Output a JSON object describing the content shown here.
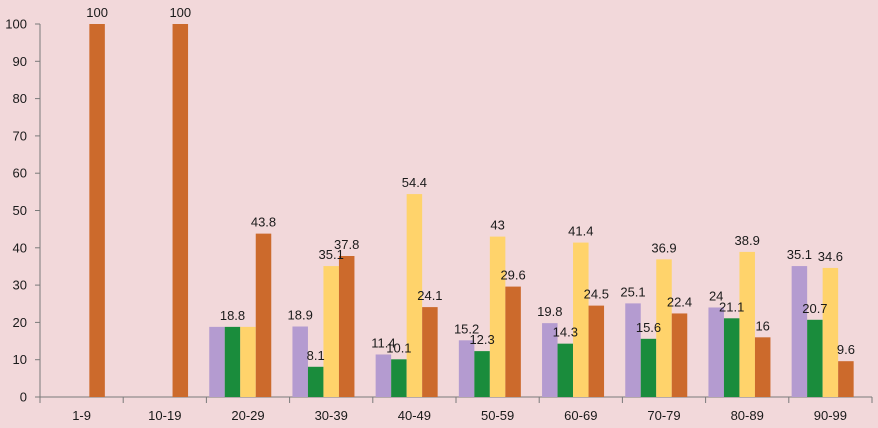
{
  "chart_data": {
    "type": "bar",
    "categories": [
      "1-9",
      "10-19",
      "20-29",
      "30-39",
      "40-49",
      "50-59",
      "60-69",
      "70-79",
      "80-89",
      "90-99"
    ],
    "series": [
      {
        "color": "#b49bd0",
        "values": [
          null,
          null,
          18.8,
          18.9,
          11.4,
          15.2,
          19.8,
          25.1,
          24,
          35.1
        ],
        "labels": [
          "",
          "",
          "",
          "18.9",
          "11.4",
          "15.2",
          "19.8",
          "25.1",
          "24",
          "35.1"
        ]
      },
      {
        "color": "#1a8c3c",
        "values": [
          null,
          null,
          18.8,
          8.1,
          10.1,
          12.3,
          14.3,
          15.6,
          21.1,
          20.7
        ],
        "labels": [
          "",
          "",
          "18.8",
          "8.1",
          "10.1",
          "12.3",
          "14.3",
          "15.6",
          "21.1",
          "20.7"
        ]
      },
      {
        "color": "#ffd36b",
        "values": [
          null,
          null,
          18.8,
          35.1,
          54.4,
          43,
          41.4,
          36.9,
          38.9,
          34.6
        ],
        "labels": [
          "",
          "",
          "",
          "35.1",
          "54.4",
          "43",
          "41.4",
          "36.9",
          "38.9",
          "34.6"
        ]
      },
      {
        "color": "#cc6a2c",
        "values": [
          100,
          100,
          43.8,
          37.8,
          24.1,
          29.6,
          24.5,
          22.4,
          16,
          9.6
        ],
        "labels": [
          "100",
          "100",
          "43.8",
          "37.8",
          "24.1",
          "29.6",
          "24.5",
          "22.4",
          "16",
          "9.6"
        ]
      }
    ],
    "ylim": [
      0,
      100
    ],
    "yticks": [
      "0",
      "10",
      "20",
      "30",
      "40",
      "50",
      "60",
      "70",
      "80",
      "90",
      "100"
    ],
    "grid": false,
    "legend": "none"
  }
}
